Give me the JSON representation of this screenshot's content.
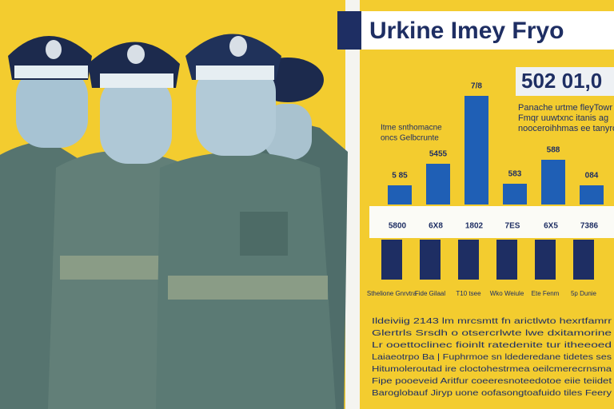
{
  "image": {
    "title": "Urkine Imey Fryo",
    "badge": "502 01,0",
    "note": [
      "Panache urtme fleyTowr",
      "Fmqr uuwtxnc itanis ag",
      "nooceroihhmas ee tanyros"
    ],
    "legend": [
      "Itme snthomacne",
      "oncs Gelbcrunte"
    ],
    "top_labels": [
      "5 85",
      "5455",
      "7/8",
      "583",
      "588",
      "084"
    ],
    "mid_labels": [
      "5800",
      "6X8",
      "1802",
      "7ES",
      "6X5",
      "7386"
    ],
    "bottom_labels": [
      "Sthelione Gnrvtra",
      "Fide Gilaal",
      "T10 tsee",
      "Wko Weiule",
      "Ete Fenm",
      "5p Dunie"
    ],
    "paragraph": [
      "Ildeiviig 2143 lm mrcsmtt fn arictlwto hexrtfamrr",
      "Glertrls Srsdh o otsercrlwte lwe dxitamorine",
      "Lr ooettoclinec fioinlt ratedenite tur itheeoed",
      "Laiaeotrpo Ba | Fuphrmoe sn ldederedane tidetes ses",
      "Hitumoleroutad ire cloctohestrmea oeilcmerecrnsma",
      "Fipe pooeveid Aritfur coeeresnoteedotoe eiie teiidet",
      "Baroglobauf Jiryp uone oofasongtoafuido tiles Feery"
    ]
  }
}
